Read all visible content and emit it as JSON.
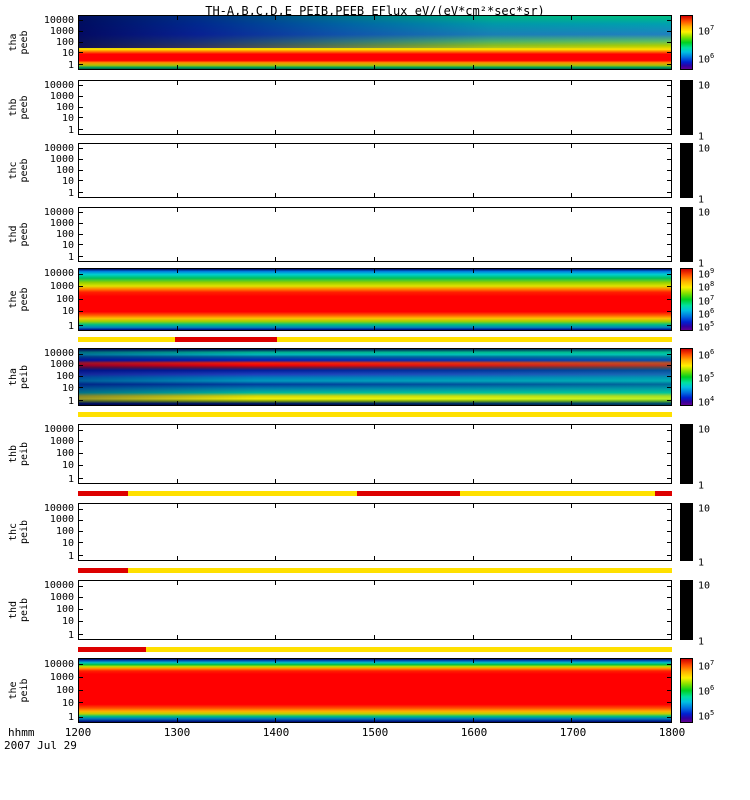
{
  "chart_data": {
    "type": "heatmap",
    "title": "TH-A,B,C,D,E PEIB,PEEB EFlux eV/(eV*cm²*sec*sr)",
    "xlabel": "hhmm",
    "date": "2007 Jul 29",
    "x_ticks": [
      "1200",
      "1300",
      "1400",
      "1500",
      "1600",
      "1700",
      "1800"
    ],
    "x_range_hhmm": [
      1200,
      1800
    ],
    "y_scale": "log",
    "y_range": [
      1,
      20000
    ],
    "y_ticks": [
      "10000",
      "1000",
      "100",
      "10",
      "1"
    ],
    "y_tick_pos": [
      0.1,
      0.3,
      0.5,
      0.7,
      0.93
    ],
    "colorbar_gradient": "linear-gradient(180deg,#d00000 0%,#ff5000 10%,#ffb000 20%,#fff000 30%,#80e000 40%,#00d020 50%,#00e0a0 60%,#00c0e0 68%,#0070e0 78%,#0020d0 87%,#3000a0 94%,#600090 100%)",
    "quality_colors": {
      "base": "#ffe000",
      "flag": "#dd0000"
    },
    "panels": [
      {
        "name": "tha peeb",
        "label_lines": [
          "tha",
          "peeb"
        ],
        "type": "spectrogram",
        "colorbar_ticks": [
          {
            "base": "10",
            "exp": "7",
            "pos": 0.24
          },
          {
            "base": "10",
            "exp": "6",
            "pos": 0.74
          }
        ],
        "gradient": "linear-gradient(180deg,#00c080 0%,#00a0b0 15%,#2080c0 35%,#60c060 48%,#b0d000 56%,#ffe000 63%,#ff6000 68%,#ff0000 72%,#ff0000 84%,#ff9000 88%,#b0c000 93%,#00a060 97%,#006040 100%)",
        "overlay": {
          "gradient": "linear-gradient(90deg,rgba(0,0,90,0.92) 0%,rgba(0,0,130,0.75) 20%,rgba(0,40,150,0.5) 45%,rgba(0,120,140,0.2) 70%,rgba(0,180,120,0) 100%)",
          "top": 0,
          "height": 0.6
        },
        "bar_above": null
      },
      {
        "name": "thb peeb",
        "label_lines": [
          "thb",
          "peeb"
        ],
        "type": "empty",
        "colorbar_ticks": [
          {
            "base": "10",
            "exp": null,
            "pos": 0.04
          },
          {
            "base": "1",
            "exp": null,
            "pos": 0.96
          }
        ],
        "gradient": null,
        "overlay": null,
        "bar_above": null
      },
      {
        "name": "thc peeb",
        "label_lines": [
          "thc",
          "peeb"
        ],
        "type": "empty",
        "colorbar_ticks": [
          {
            "base": "10",
            "exp": null,
            "pos": 0.04
          },
          {
            "base": "1",
            "exp": null,
            "pos": 0.96
          }
        ],
        "gradient": null,
        "overlay": null,
        "bar_above": null
      },
      {
        "name": "thd peeb",
        "label_lines": [
          "thd",
          "peeb"
        ],
        "type": "empty",
        "colorbar_ticks": [
          {
            "base": "10",
            "exp": null,
            "pos": 0.04
          },
          {
            "base": "1",
            "exp": null,
            "pos": 0.96
          }
        ],
        "gradient": null,
        "overlay": null,
        "bar_above": null
      },
      {
        "name": "the peeb",
        "label_lines": [
          "the",
          "peeb"
        ],
        "type": "spectrogram",
        "colorbar_ticks": [
          {
            "base": "10",
            "exp": "9",
            "pos": 0.05
          },
          {
            "base": "10",
            "exp": "8",
            "pos": 0.26
          },
          {
            "base": "10",
            "exp": "7",
            "pos": 0.47
          },
          {
            "base": "10",
            "exp": "6",
            "pos": 0.68
          },
          {
            "base": "10",
            "exp": "5",
            "pos": 0.89
          }
        ],
        "gradient": "linear-gradient(180deg,#000060 0%,#0080e0 4%,#00d0d0 9%,#00c060 15%,#90d000 22%,#e0e000 28%,#ff8000 33%,#ff2000 38%,#ff0000 45%,#ff0000 70%,#ff6000 76%,#ffc000 81%,#a0d000 86%,#00c080 91%,#0080c0 96%,#000080 100%)",
        "overlay": null,
        "bar_above": null
      },
      {
        "name": "tha peib",
        "label_lines": [
          "tha",
          "peib"
        ],
        "type": "spectrogram",
        "colorbar_ticks": [
          {
            "base": "10",
            "exp": "6",
            "pos": 0.07
          },
          {
            "base": "10",
            "exp": "5",
            "pos": 0.47
          },
          {
            "base": "10",
            "exp": "4",
            "pos": 0.88
          }
        ],
        "gradient": "linear-gradient(180deg,#000050 0%,#00b890 6%,#00c0c0 10%,#0060a0 14%,#0020c0 20%,#ff2000 25%,#ff0000 29%,#801030 33%,#0020a0 38%,#2040c0 45%,#0080c0 51%,#00a0c0 57%,#0040a0 63%,#0080b0 70%,#00c0a0 78%,#e0e000 84%,#ffff00 89%,#80a000 93%,#002060 97%,#000040 100%)",
        "overlay": {
          "gradient": "linear-gradient(90deg,rgba(0,0,100,0.4) 0%,rgba(0,0,100,0.05) 30%,rgba(0,200,130,0.12) 65%,rgba(0,210,140,0.28) 100%)",
          "top": 0,
          "height": 1
        },
        "bar_above": {
          "segments": [
            {
              "from": 0.163,
              "to": 0.335
            }
          ]
        }
      },
      {
        "name": "thb peib",
        "label_lines": [
          "thb",
          "peib"
        ],
        "type": "empty",
        "colorbar_ticks": [
          {
            "base": "10",
            "exp": null,
            "pos": 0.04
          },
          {
            "base": "1",
            "exp": null,
            "pos": 0.96
          }
        ],
        "gradient": null,
        "overlay": null,
        "bar_above": {
          "segments": []
        }
      },
      {
        "name": "thc peib",
        "label_lines": [
          "thc",
          "peib"
        ],
        "type": "empty",
        "colorbar_ticks": [
          {
            "base": "10",
            "exp": null,
            "pos": 0.04
          },
          {
            "base": "1",
            "exp": null,
            "pos": 0.96
          }
        ],
        "gradient": null,
        "overlay": null,
        "bar_above": {
          "segments": [
            {
              "from": 0,
              "to": 0.085
            },
            {
              "from": 0.47,
              "to": 0.643
            },
            {
              "from": 0.971,
              "to": 1
            }
          ]
        }
      },
      {
        "name": "thd peib",
        "label_lines": [
          "thd",
          "peib"
        ],
        "type": "empty",
        "colorbar_ticks": [
          {
            "base": "10",
            "exp": null,
            "pos": 0.04
          },
          {
            "base": "1",
            "exp": null,
            "pos": 0.96
          }
        ],
        "gradient": null,
        "overlay": null,
        "bar_above": {
          "segments": [
            {
              "from": 0,
              "to": 0.085
            }
          ]
        }
      },
      {
        "name": "the peib",
        "label_lines": [
          "the",
          "peib"
        ],
        "type": "spectrogram",
        "colorbar_ticks": [
          {
            "base": "10",
            "exp": "7",
            "pos": 0.08
          },
          {
            "base": "10",
            "exp": "6",
            "pos": 0.46
          },
          {
            "base": "10",
            "exp": "5",
            "pos": 0.85
          }
        ],
        "gradient": "linear-gradient(180deg,#000060 0%,#0060c0 3%,#00c0c0 6%,#00c040 9%,#c0e000 12%,#ff9000 15%,#ff2000 19%,#ff0000 24%,#ff0000 72%,#ff5000 78%,#ffb000 83%,#c0d000 87%,#00c080 91%,#0070c0 95%,#000070 100%)",
        "overlay": null,
        "bar_above": {
          "segments": [
            {
              "from": 0,
              "to": 0.114
            }
          ]
        }
      }
    ]
  }
}
